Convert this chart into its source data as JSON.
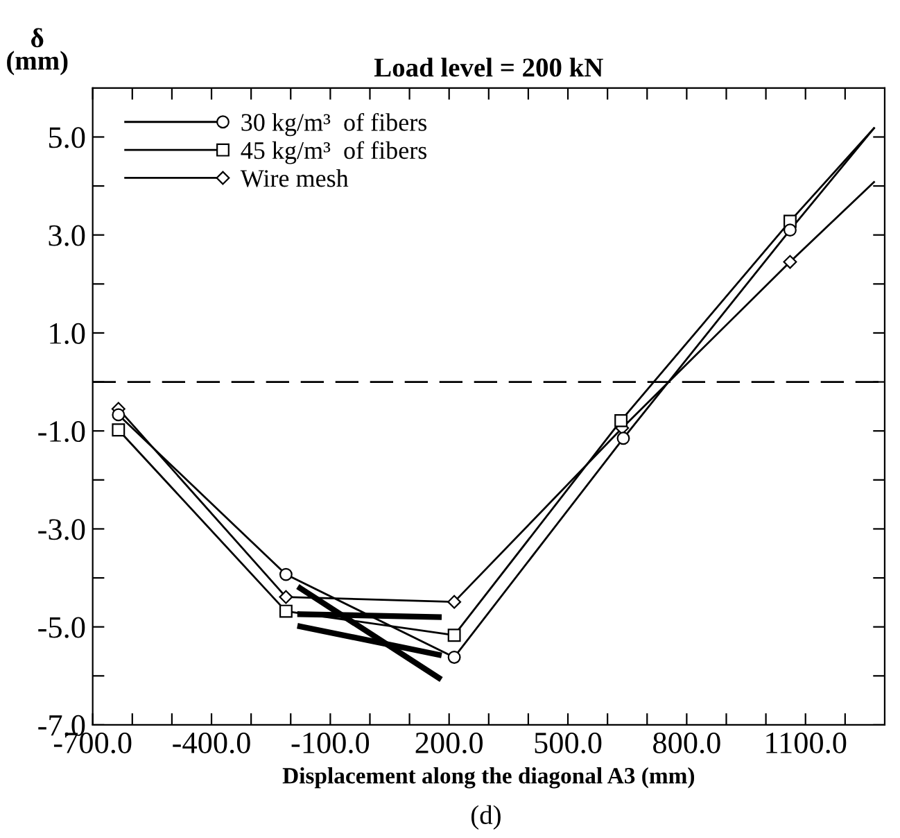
{
  "chart_data": {
    "type": "line",
    "title": "Load level = 200 kN",
    "xlabel": "Displacement along the diagonal A3 (mm)",
    "ylabel": "δ\n(mm)",
    "annotations": [
      "(d)"
    ],
    "series": [
      {
        "name": "30 kg/m³  of fibers",
        "color": "#000000",
        "marker": "circle",
        "x": [
          -635,
          -212,
          213,
          640,
          1061,
          1273
        ],
        "values": [
          -0.67,
          -3.93,
          -5.62,
          -1.15,
          3.1,
          5.18
        ]
      },
      {
        "name": "45 kg/m³  of fibers",
        "color": "#000000",
        "marker": "square",
        "x": [
          -635,
          -212,
          213,
          634,
          1061,
          1273
        ],
        "values": [
          -0.98,
          -4.68,
          -5.17,
          -0.79,
          3.28,
          5.18
        ]
      },
      {
        "name": "Wire mesh",
        "color": "#000000",
        "marker": "diamond",
        "x": [
          -635,
          -212,
          213,
          637,
          1061,
          1273
        ],
        "values": [
          -0.55,
          -4.39,
          -4.49,
          -0.94,
          2.45,
          4.08
        ]
      },
      {
        "color": "#000000",
        "marker": "none",
        "x": [
          -176,
          174
        ],
        "values": [
          -4.21,
          -6.04
        ]
      },
      {
        "color": "#000000",
        "marker": "none",
        "x": [
          -176,
          174
        ],
        "values": [
          -4.74,
          -4.8
        ]
      },
      {
        "color": "#000000",
        "marker": "none",
        "x": [
          -176,
          174
        ],
        "values": [
          -4.99,
          -5.57
        ]
      }
    ],
    "ref_lines": [
      {
        "axis": "y",
        "value": 0,
        "color": "#000000",
        "line_style": "dashed"
      }
    ],
    "xlim": [
      -700,
      1300
    ],
    "ylim": [
      -7,
      6
    ],
    "xticks": [
      {
        "value": -700,
        "label": "-700.0"
      },
      {
        "value": -600,
        "label": null
      },
      {
        "value": -500,
        "label": null
      },
      {
        "value": -400,
        "label": "-400.0"
      },
      {
        "value": -300,
        "label": null
      },
      {
        "value": -200,
        "label": null
      },
      {
        "value": -100,
        "label": "-100.0"
      },
      {
        "value": 0,
        "label": null
      },
      {
        "value": 100,
        "label": null
      },
      {
        "value": 200,
        "label": "200.0"
      },
      {
        "value": 300,
        "label": null
      },
      {
        "value": 400,
        "label": null
      },
      {
        "value": 500,
        "label": "500.0"
      },
      {
        "value": 600,
        "label": null
      },
      {
        "value": 700,
        "label": null
      },
      {
        "value": 800,
        "label": "800.0"
      },
      {
        "value": 900,
        "label": null
      },
      {
        "value": 1000,
        "label": null
      },
      {
        "value": 1100,
        "label": "1100.0"
      },
      {
        "value": 1200,
        "label": null
      }
    ],
    "yticks": [
      {
        "value": -7,
        "label": "-7.0"
      },
      {
        "value": -6,
        "label": null
      },
      {
        "value": -5,
        "label": "-5.0"
      },
      {
        "value": -4,
        "label": null
      },
      {
        "value": -3,
        "label": "-3.0"
      },
      {
        "value": -2,
        "label": null
      },
      {
        "value": -1,
        "label": "-1.0"
      },
      {
        "value": 0,
        "label": null
      },
      {
        "value": 1,
        "label": "1.0"
      },
      {
        "value": 2,
        "label": null
      },
      {
        "value": 3,
        "label": "3.0"
      },
      {
        "value": 4,
        "label": null
      },
      {
        "value": 5,
        "label": "5.0"
      }
    ],
    "grid": false,
    "legend": "top left"
  }
}
